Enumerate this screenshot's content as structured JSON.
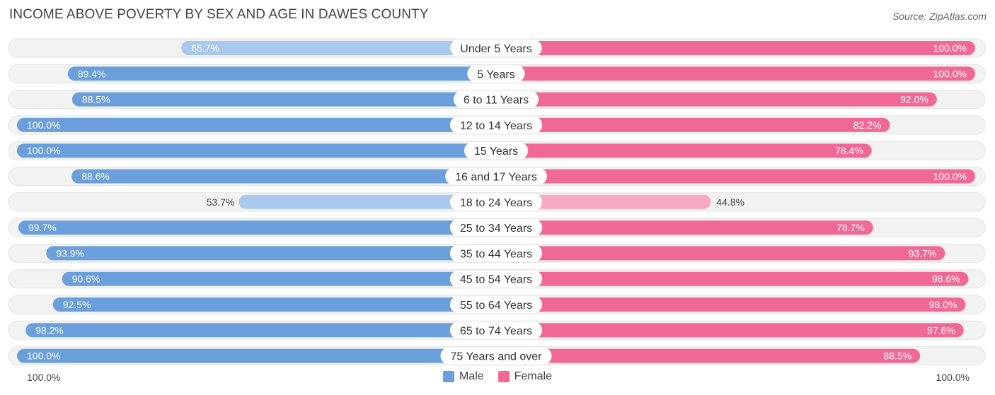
{
  "title": "INCOME ABOVE POVERTY BY SEX AND AGE IN DAWES COUNTY",
  "source": "Source: ZipAtlas.com",
  "axis": {
    "left_label": "100.0%",
    "right_label": "100.0%"
  },
  "legend": {
    "male_label": "Male",
    "female_label": "Female",
    "male_color": "#6a9fdc",
    "female_color": "#f06896"
  },
  "chart_data": {
    "type": "bar",
    "orientation": "horizontal-diverging",
    "title": "INCOME ABOVE POVERTY BY SEX AND AGE IN DAWES COUNTY",
    "categories": [
      "Under 5 Years",
      "5 Years",
      "6 to 11 Years",
      "12 to 14 Years",
      "15 Years",
      "16 and 17 Years",
      "18 to 24 Years",
      "25 to 34 Years",
      "35 to 44 Years",
      "45 to 54 Years",
      "55 to 64 Years",
      "65 to 74 Years",
      "75 Years and over"
    ],
    "series": [
      {
        "name": "Male",
        "color": "#6a9fdc",
        "values": [
          65.7,
          89.4,
          88.5,
          100.0,
          100.0,
          88.6,
          53.7,
          99.7,
          93.9,
          90.6,
          92.5,
          98.2,
          100.0
        ],
        "labels": [
          "65.7%",
          "89.4%",
          "88.5%",
          "100.0%",
          "100.0%",
          "88.6%",
          "53.7%",
          "99.7%",
          "93.9%",
          "90.6%",
          "92.5%",
          "98.2%",
          "100.0%"
        ]
      },
      {
        "name": "Female",
        "color": "#f06896",
        "values": [
          100.0,
          100.0,
          92.0,
          82.2,
          78.4,
          100.0,
          44.8,
          78.7,
          93.7,
          98.6,
          98.0,
          97.6,
          88.5
        ],
        "labels": [
          "100.0%",
          "100.0%",
          "92.0%",
          "82.2%",
          "78.4%",
          "100.0%",
          "44.8%",
          "78.7%",
          "93.7%",
          "98.6%",
          "98.0%",
          "97.6%",
          "88.5%"
        ]
      }
    ],
    "xlim": [
      0,
      100
    ],
    "legend_position": "bottom-center"
  }
}
